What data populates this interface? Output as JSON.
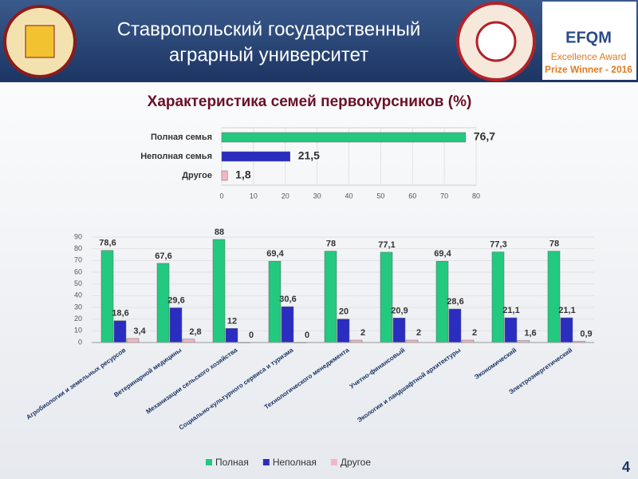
{
  "header": {
    "title_lines": [
      "Ставропольский государственный",
      "аграрный университет"
    ],
    "award": [
      "EFQM",
      "Excellence Award",
      "Prize Winner - 2016"
    ]
  },
  "page_number": "4",
  "chart_data": [
    {
      "type": "hbar",
      "title": "Характеристика семей первокурсников (%)",
      "categories": [
        "Полная семья",
        "Неполная семья",
        "Другое"
      ],
      "values": [
        76.7,
        21.5,
        1.8
      ],
      "value_labels": [
        "76,7",
        "21,5",
        "1,8"
      ],
      "colors": [
        "#22c97f",
        "#2a2dbf",
        "#f4b6c4"
      ],
      "xlim": [
        0,
        80
      ],
      "xticks": [
        0,
        10,
        20,
        30,
        40,
        50,
        60,
        70,
        80
      ]
    },
    {
      "type": "bar",
      "categories": [
        "Агробиологии и земельных ресурсов",
        "Ветеринарной медицины",
        "Механизации сельского хозяйства",
        "Социально-культурного сервиса и туризма",
        "Технологического менеджмента",
        "Учетно-финансовый",
        "Экологии и ландшафтной архитектуры",
        "Экономический",
        "Электроэнергетический"
      ],
      "series": [
        {
          "name": "Полная",
          "color": "#22c97f",
          "values": [
            78.6,
            67.6,
            88,
            69.4,
            78,
            77.1,
            69.4,
            77.3,
            78
          ],
          "value_labels": [
            "78,6",
            "67,6",
            "88",
            "69,4",
            "78",
            "77,1",
            "69,4",
            "77,3",
            "78"
          ]
        },
        {
          "name": "Неполная",
          "color": "#2a2dbf",
          "values": [
            18.6,
            29.6,
            12,
            30.6,
            20,
            20.9,
            28.6,
            21.1,
            21.1
          ],
          "value_labels": [
            "18,6",
            "29,6",
            "12",
            "30,6",
            "20",
            "20,9",
            "28,6",
            "21,1",
            "21,1"
          ]
        },
        {
          "name": "Другое",
          "color": "#f4b6c4",
          "values": [
            3.4,
            2.8,
            0,
            0,
            2,
            2,
            2,
            1.6,
            0.9
          ],
          "value_labels": [
            "3,4",
            "2,8",
            "0",
            "0",
            "2",
            "2",
            "2",
            "1,6",
            "0,9"
          ]
        }
      ],
      "ylim": [
        0,
        90
      ],
      "yticks": [
        0,
        10,
        20,
        30,
        40,
        50,
        60,
        70,
        80,
        90
      ],
      "legend": "bottom"
    }
  ]
}
